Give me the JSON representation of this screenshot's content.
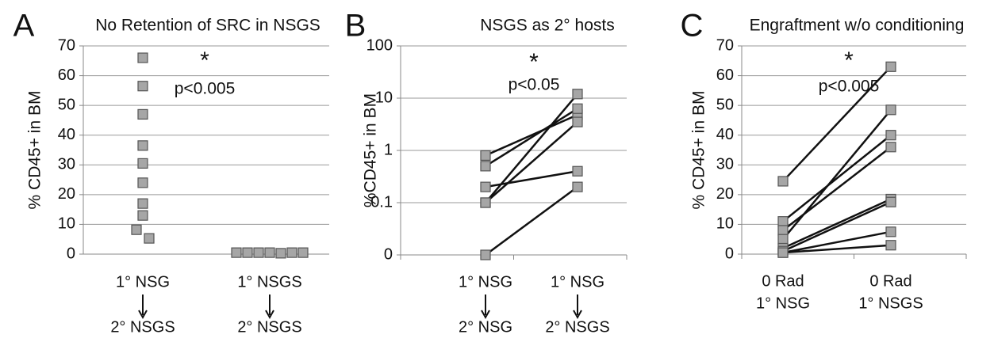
{
  "chart_data": [
    {
      "type": "scatter",
      "panel": "A",
      "title": "No Retention of SRC in NSGS",
      "y_label": "% CD45+ in BM",
      "categories": [
        [
          "1° NSG",
          "2° NSGS"
        ],
        [
          "1° NSGS",
          "2° NSGS"
        ]
      ],
      "category_arrows": true,
      "series": [
        {
          "values": [
            66,
            56.5,
            47,
            36.5,
            30.5,
            24,
            17,
            13,
            8.2,
            5.3
          ]
        },
        {
          "values": [
            0.5,
            0.5,
            0.5,
            0.5,
            0.3,
            0.5,
            0.5
          ]
        }
      ],
      "color": "#a6a6a6",
      "ylim": [
        0,
        70
      ],
      "yticks": [
        0,
        10,
        20,
        30,
        40,
        50,
        60,
        70
      ],
      "grid": true,
      "log": false,
      "annotations": [
        "*",
        "p<0.005"
      ]
    },
    {
      "type": "line",
      "panel": "B",
      "title": "NSGS as 2° hosts",
      "y_label": "%CD45+ in BM",
      "categories": [
        [
          "1° NSG",
          "2° NSG"
        ],
        [
          "1° NSG",
          "2° NSGS"
        ]
      ],
      "category_arrows": true,
      "series": [
        {
          "values": [
            0.8,
            4.8
          ]
        },
        {
          "values": [
            0.5,
            6.3
          ]
        },
        {
          "values": [
            0.2,
            0.4
          ]
        },
        {
          "values": [
            0.1,
            12
          ]
        },
        {
          "values": [
            0.1,
            3.5
          ]
        },
        {
          "values": [
            0.01,
            0.2
          ]
        }
      ],
      "color": "#a6a6a6",
      "ylim": [
        0.01,
        100
      ],
      "yticks": [
        {
          "value": 0.01,
          "label": "0"
        },
        0.1,
        1,
        10,
        100
      ],
      "grid": true,
      "log": true,
      "annotations": [
        "*",
        "p<0.05"
      ]
    },
    {
      "type": "line",
      "panel": "C",
      "title": "Engraftment w/o conditioning",
      "y_label": "% CD45+ in BM",
      "categories": [
        [
          "0 Rad",
          "1° NSG"
        ],
        [
          "0 Rad",
          "1° NSGS"
        ]
      ],
      "category_arrows": false,
      "series": [
        {
          "values": [
            24.5,
            63
          ]
        },
        {
          "values": [
            11,
            40
          ]
        },
        {
          "values": [
            8,
            36
          ]
        },
        {
          "values": [
            5,
            48.5
          ]
        },
        {
          "values": [
            2,
            18.5
          ]
        },
        {
          "values": [
            1,
            17.5
          ]
        },
        {
          "values": [
            0.5,
            7.5
          ]
        },
        {
          "values": [
            0.5,
            3
          ]
        }
      ],
      "color": "#a6a6a6",
      "ylim": [
        0,
        70
      ],
      "yticks": [
        0,
        10,
        20,
        30,
        40,
        50,
        60,
        70
      ],
      "grid": true,
      "log": false,
      "annotations": [
        "*",
        "p<0.005"
      ]
    }
  ]
}
